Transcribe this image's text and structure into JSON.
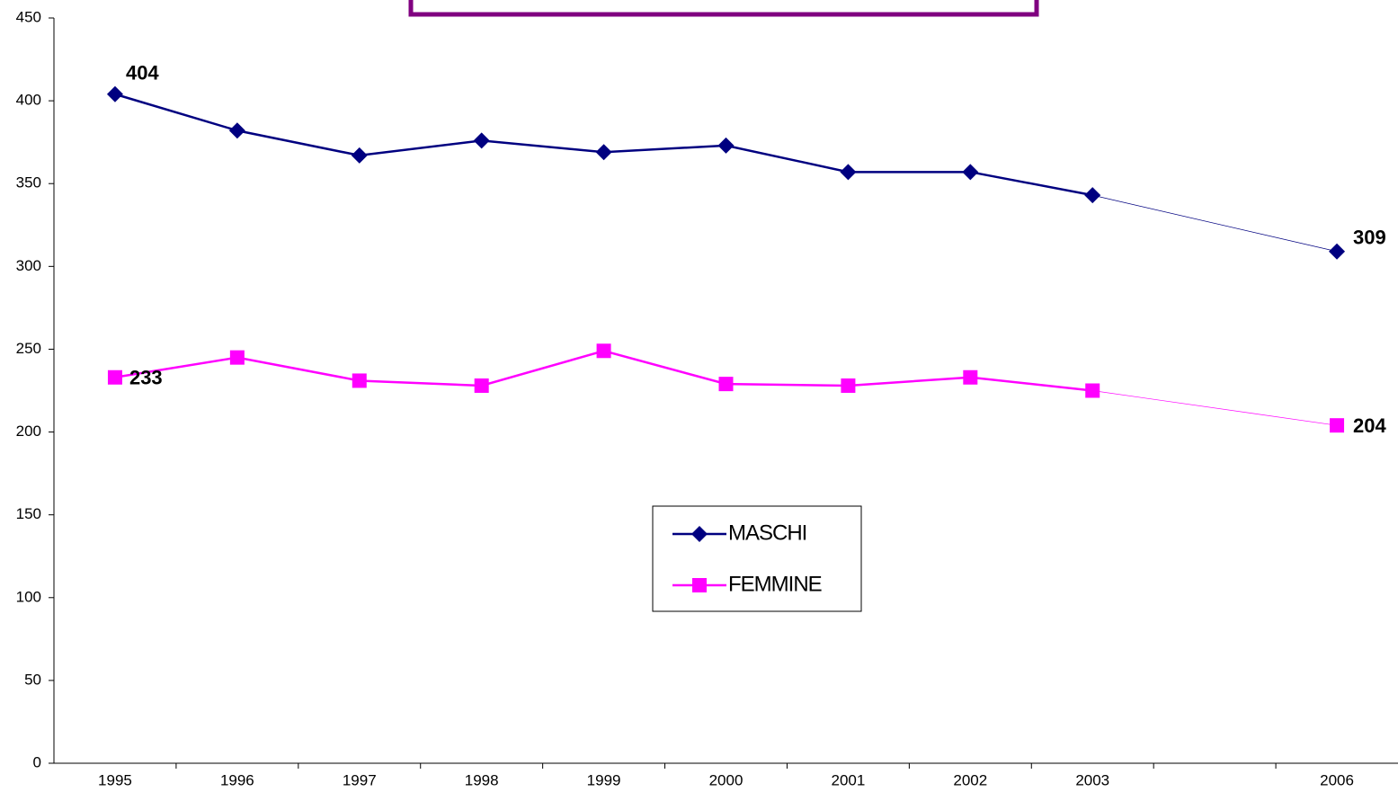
{
  "chart_data": {
    "type": "line",
    "categories": [
      "1995",
      "1996",
      "1997",
      "1998",
      "1999",
      "2000",
      "2001",
      "2002",
      "2003",
      null,
      "2006"
    ],
    "series": [
      {
        "name": "MASCHI",
        "color": "#000080",
        "marker": "diamond",
        "values": [
          404,
          382,
          367,
          376,
          369,
          373,
          357,
          357,
          343,
          null,
          309
        ]
      },
      {
        "name": "FEMMINE",
        "color": "#ff00ff",
        "marker": "square",
        "values": [
          233,
          245,
          231,
          228,
          249,
          229,
          228,
          233,
          225,
          null,
          204
        ]
      }
    ],
    "data_label_indices": [
      0,
      10
    ],
    "ylim": [
      0,
      450
    ],
    "yticks": [
      0,
      50,
      100,
      150,
      200,
      250,
      300,
      350,
      400,
      450
    ],
    "grid": false
  }
}
